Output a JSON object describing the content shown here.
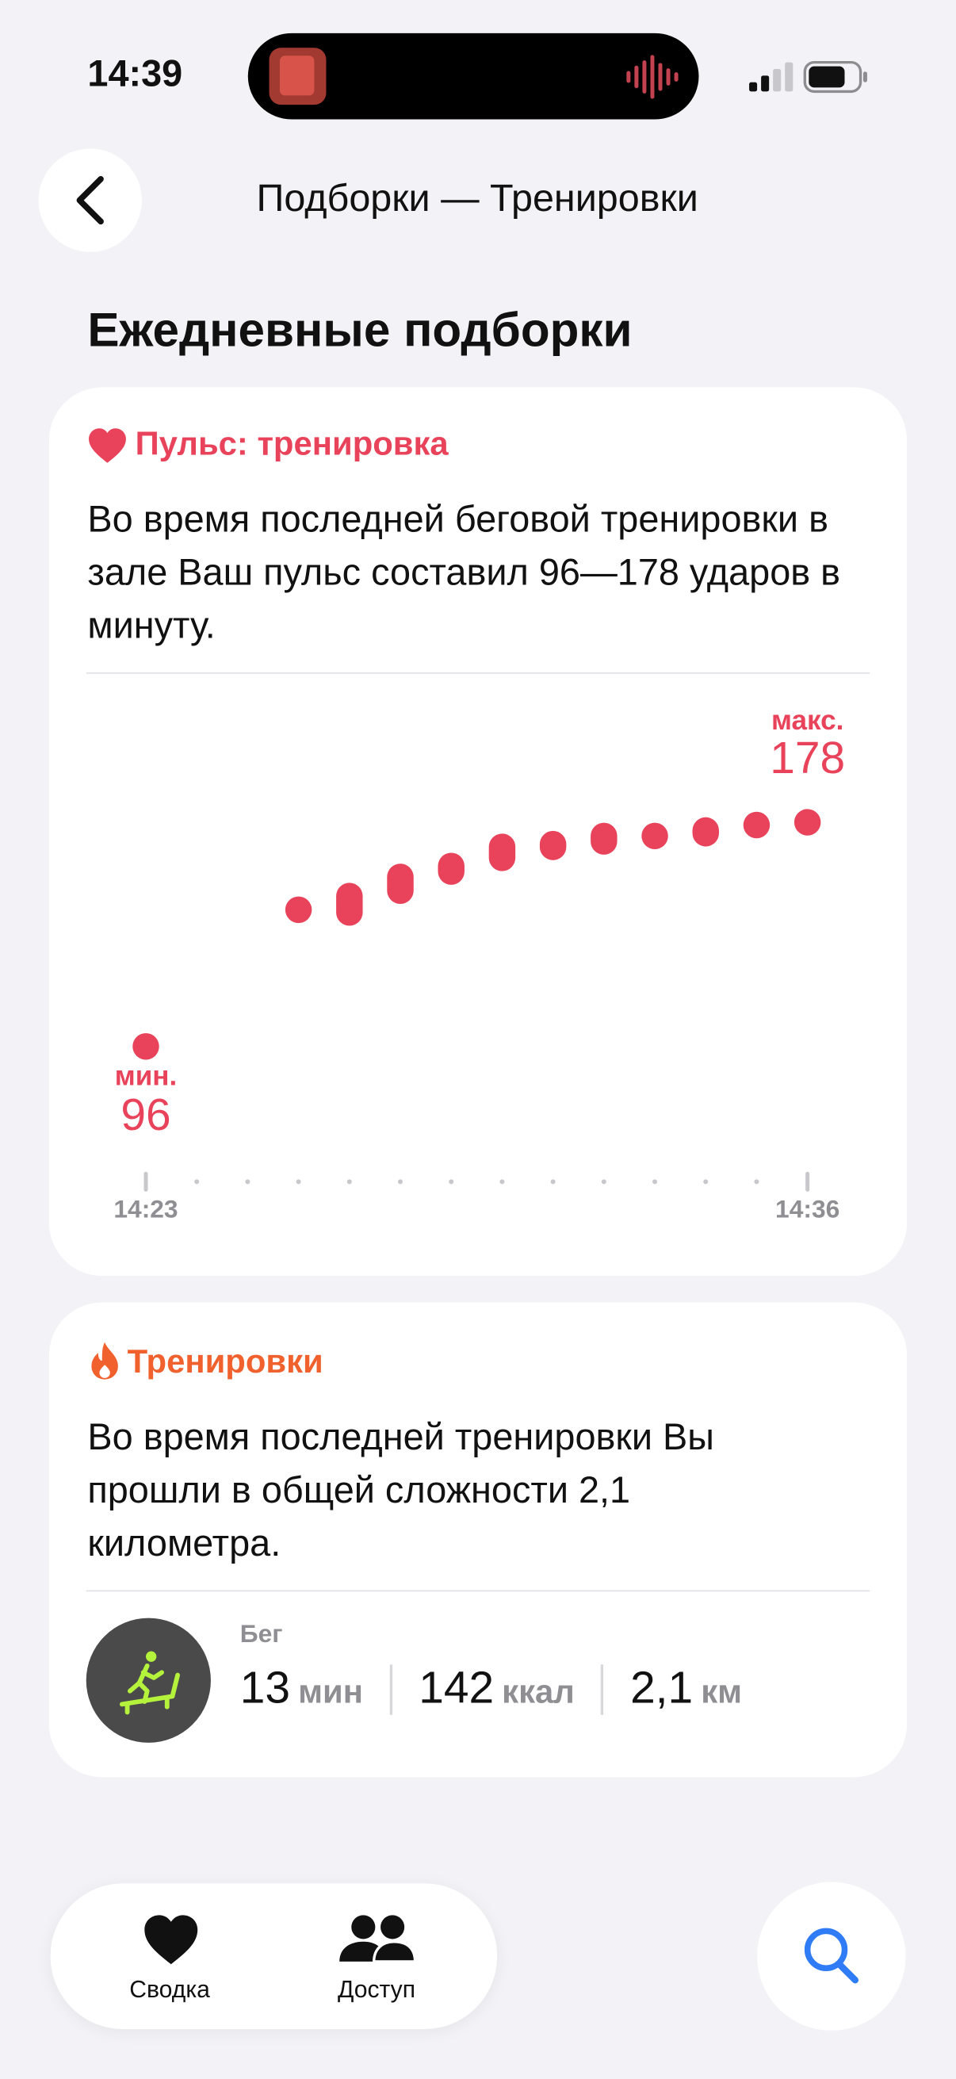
{
  "status_bar": {
    "time": "14:39"
  },
  "nav": {
    "title": "Подборки — Тренировки"
  },
  "section_title": "Ежедневные подборки",
  "cards": [
    {
      "title": "Пульс: тренировка",
      "text": "Во время последней беговой тренировки в зале Ваш пульс составил 96—178 ударов в минуту."
    },
    {
      "title": "Тренировки",
      "text": "Во время последней тренировки Вы прошли в общей сложности 2,1 километра.",
      "workout": {
        "type": "Бег",
        "stats": [
          {
            "value": "13",
            "unit": "мин"
          },
          {
            "value": "142",
            "unit": "ккал"
          },
          {
            "value": "2,1",
            "unit": "км"
          }
        ]
      }
    }
  ],
  "chart_data": {
    "type": "range",
    "categories": [
      "14:23",
      null,
      null,
      null,
      null,
      null,
      null,
      null,
      null,
      null,
      null,
      null,
      null,
      "14:36"
    ],
    "low": [
      96,
      null,
      null,
      146,
      145,
      153,
      160,
      165,
      169,
      171,
      173,
      174,
      177,
      178
    ],
    "high": [
      96,
      null,
      null,
      146,
      151,
      158,
      162,
      169,
      170,
      173,
      173,
      175,
      177,
      178
    ],
    "color": "#e8435a",
    "annotations": [
      {
        "label": "мин.",
        "value": 96
      },
      {
        "label": "макс.",
        "value": 178
      }
    ]
  },
  "tab_bar": {
    "items": [
      "Сводка",
      "Доступ"
    ]
  }
}
